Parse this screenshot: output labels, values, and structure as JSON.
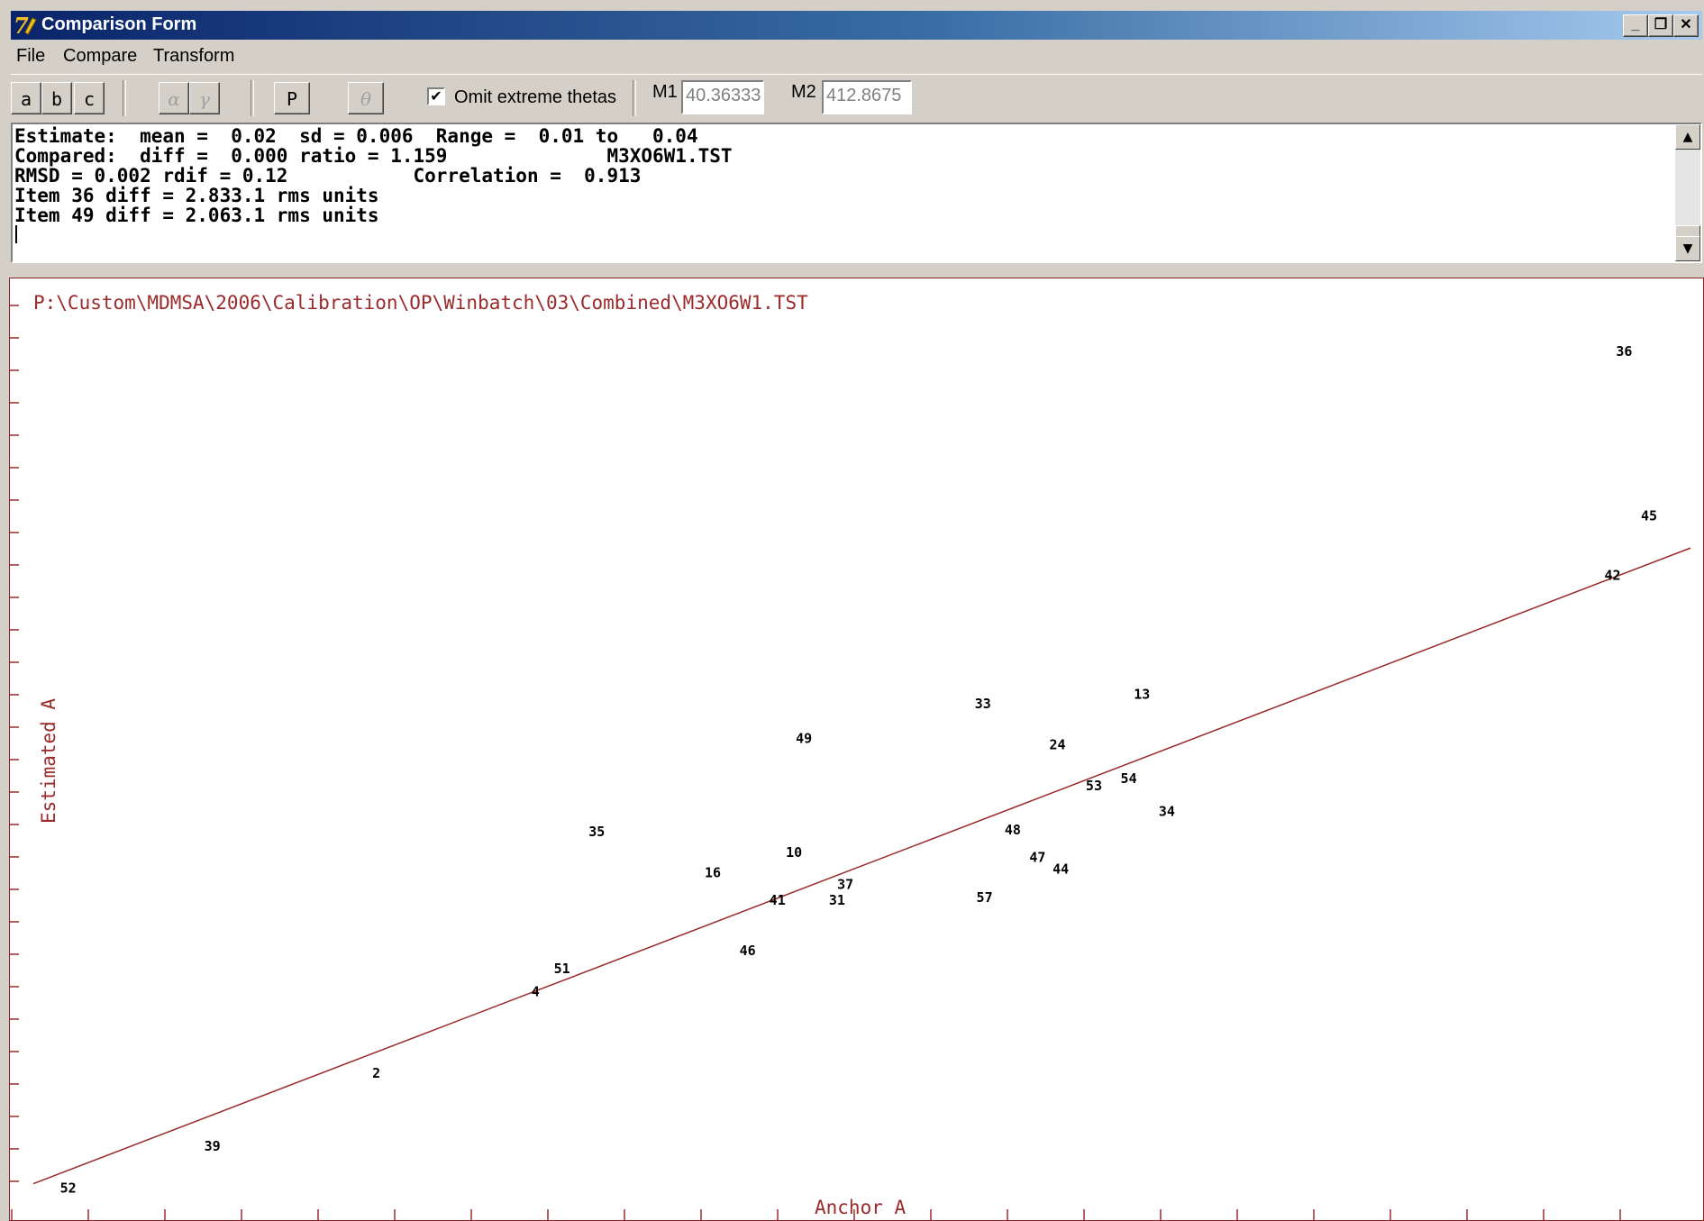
{
  "window": {
    "title": "Comparison Form",
    "buttons": {
      "minimize": "_",
      "restore": "❐",
      "close": "✕"
    }
  },
  "menu": [
    "File",
    "Compare",
    "Transform"
  ],
  "toolbar": {
    "param_buttons": [
      "a",
      "b",
      "c"
    ],
    "greek_buttons": [
      "α",
      "γ"
    ],
    "p_button": "P",
    "theta_button": "θ",
    "omit_checkbox": {
      "label": "Omit extreme thetas",
      "checked": true
    },
    "m1": {
      "label": "M1",
      "value": "40.36333"
    },
    "m2": {
      "label": "M2",
      "value": "412.8675"
    }
  },
  "info_lines": [
    "Estimate:  mean =  0.02  sd = 0.006  Range =  0.01 to   0.04",
    "Compared:  diff =  0.000 ratio = 1.159              M3XO6W1.TST",
    "RMSD = 0.002 rdif = 0.12           Correlation =  0.913",
    "Item 36 diff = 2.833.1 rms units",
    "Item 49 diff = 2.063.1 rms units"
  ],
  "plot": {
    "file_path": "P:\\Custom\\MDMSA\\2006\\Calibration\\OP\\Winbatch\\03\\Combined\\M3XO6W1.TST",
    "xlabel": "Anchor A",
    "ylabel": "Estimated A",
    "accent_color": "#9b2a2a"
  },
  "chart_data": {
    "type": "scatter",
    "xlabel": "Anchor A",
    "ylabel": "Estimated A",
    "xlim": [
      0,
      1
    ],
    "ylim": [
      0,
      1
    ],
    "fit_line": {
      "x": [
        0,
        1
      ],
      "y": [
        0.03,
        0.725
      ]
    },
    "points": [
      {
        "label": "36",
        "x": 0.96,
        "y": 0.935
      },
      {
        "label": "45",
        "x": 0.975,
        "y": 0.755
      },
      {
        "label": "42",
        "x": 0.953,
        "y": 0.69
      },
      {
        "label": "13",
        "x": 0.669,
        "y": 0.56
      },
      {
        "label": "33",
        "x": 0.573,
        "y": 0.55
      },
      {
        "label": "49",
        "x": 0.465,
        "y": 0.512
      },
      {
        "label": "24",
        "x": 0.618,
        "y": 0.505
      },
      {
        "label": "53",
        "x": 0.64,
        "y": 0.46
      },
      {
        "label": "54",
        "x": 0.661,
        "y": 0.468
      },
      {
        "label": "34",
        "x": 0.684,
        "y": 0.432
      },
      {
        "label": "35",
        "x": 0.34,
        "y": 0.41
      },
      {
        "label": "48",
        "x": 0.591,
        "y": 0.412
      },
      {
        "label": "10",
        "x": 0.459,
        "y": 0.387
      },
      {
        "label": "47",
        "x": 0.606,
        "y": 0.382
      },
      {
        "label": "16",
        "x": 0.41,
        "y": 0.365
      },
      {
        "label": "44",
        "x": 0.62,
        "y": 0.369
      },
      {
        "label": "37",
        "x": 0.49,
        "y": 0.352
      },
      {
        "label": "41",
        "x": 0.449,
        "y": 0.335
      },
      {
        "label": "31",
        "x": 0.485,
        "y": 0.335
      },
      {
        "label": "57",
        "x": 0.574,
        "y": 0.338
      },
      {
        "label": "46",
        "x": 0.431,
        "y": 0.28
      },
      {
        "label": "51",
        "x": 0.319,
        "y": 0.26
      },
      {
        "label": "4",
        "x": 0.303,
        "y": 0.235
      },
      {
        "label": "2",
        "x": 0.207,
        "y": 0.146
      },
      {
        "label": "39",
        "x": 0.108,
        "y": 0.066
      },
      {
        "label": "52",
        "x": 0.021,
        "y": 0.02
      }
    ]
  }
}
